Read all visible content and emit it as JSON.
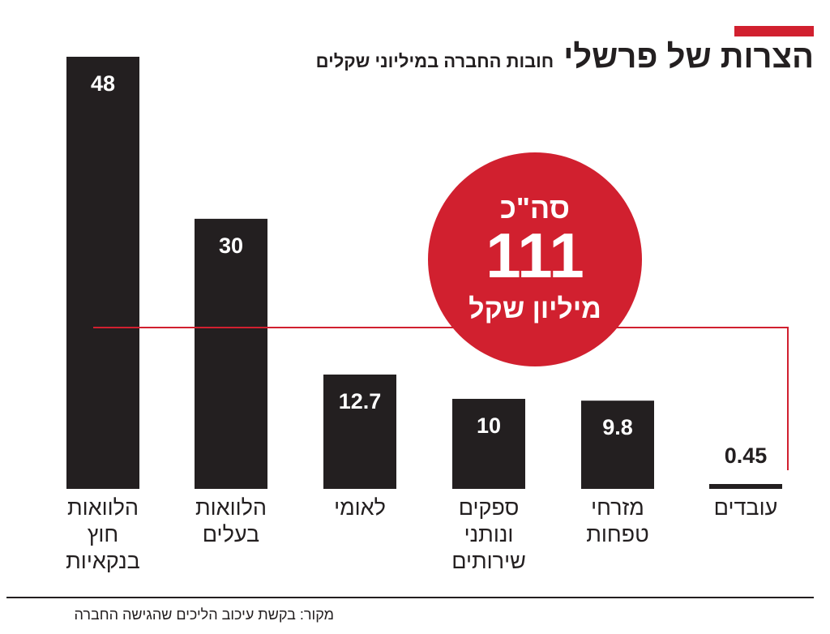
{
  "header": {
    "title": "הצרות של פרשלי",
    "subtitle": "חובות החברה במיליוני שקלים"
  },
  "total": {
    "prefix": "סה\"כ",
    "value": "111",
    "unit": "מיליון שקל"
  },
  "footer": {
    "source": "מקור: בקשת עיכוב הליכים שהגישה החברה"
  },
  "colors": {
    "bar": "#231f20",
    "accent": "#d1202f",
    "value_text": "#ffffff",
    "outside_value_text": "#231f20"
  },
  "chart_data": {
    "type": "bar",
    "title": "הצרות של פרשלי",
    "subtitle": "חובות החברה במיליוני שקלים",
    "categories": [
      "הלוואות חוץ בנקאיות",
      "הלוואות בעלים",
      "לאומי",
      "ספקים ונותני שירותים",
      "מזרחי טפחות",
      "עובדים"
    ],
    "category_lines": [
      [
        "הלוואות",
        "חוץ",
        "בנקאיות"
      ],
      [
        "הלוואות",
        "בעלים"
      ],
      [
        "לאומי"
      ],
      [
        "ספקים",
        "ונותני",
        "שירותים"
      ],
      [
        "מזרחי",
        "טפחות"
      ],
      [
        "עובדים"
      ]
    ],
    "values": [
      48,
      30,
      12.7,
      10,
      9.8,
      0.45
    ],
    "value_labels": [
      "48",
      "30",
      "12.7",
      "10",
      "9.8",
      "0.45"
    ],
    "total": 111,
    "ylim": [
      0,
      48
    ],
    "grid": false,
    "legend": "none"
  }
}
